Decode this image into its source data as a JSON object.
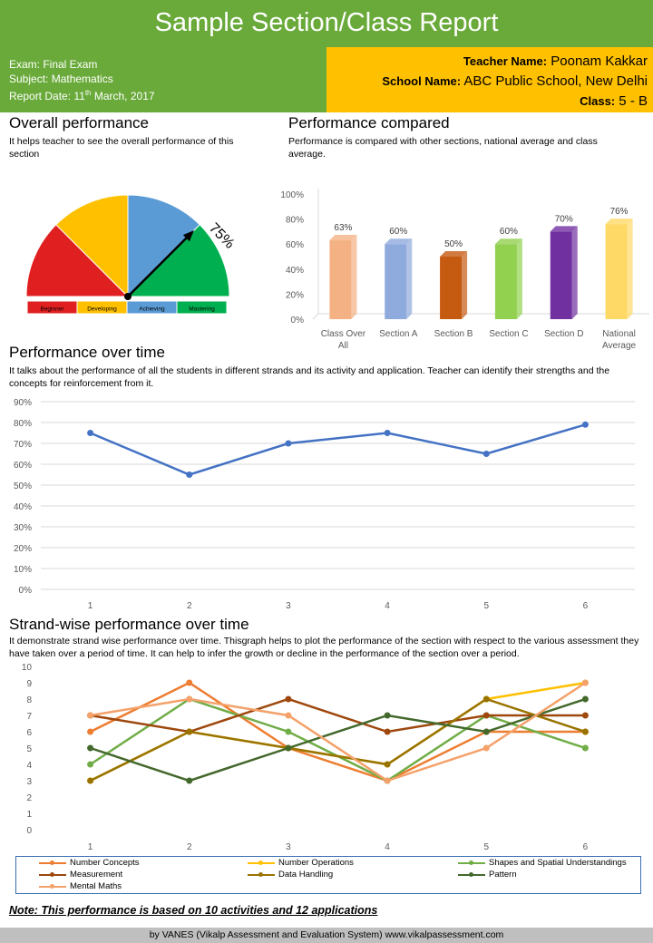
{
  "title": "Sample Section/Class Report",
  "exam": {
    "exam": "Exam: Final Exam",
    "subject": "Subject: Mathematics",
    "report_date_prefix": "Report Date: 11",
    "report_date_sup": "th",
    "report_date_suffix": " March, 2017"
  },
  "teacher": {
    "label": "Teacher Name:",
    "value": " Poonam Kakkar"
  },
  "school": {
    "label": "School Name:",
    "value": " ABC Public School, New Delhi"
  },
  "class_info": {
    "label": "Class:",
    "value": "  5 - B"
  },
  "overall": {
    "title": "Overall performance",
    "desc": "It helps teacher to see  the overall performance of this section",
    "gauge_value": 75,
    "gauge_label": "75%",
    "bands": [
      {
        "label": "Beginner",
        "color": "#e02020"
      },
      {
        "label": "Developing",
        "color": "#ffc000"
      },
      {
        "label": "Achieving",
        "color": "#5b9bd5"
      },
      {
        "label": "Mastering",
        "color": "#00b050"
      }
    ]
  },
  "compared": {
    "title": "Performance compared",
    "desc": "Performance is compared with other sections, national average and class average."
  },
  "over_time": {
    "title": "Performance over time",
    "desc": "It talks about the performance of all the students in different strands and its activity and application. Teacher can identify their strengths and the concepts for reinforcement from it."
  },
  "strand": {
    "title": "Strand-wise performance over time",
    "desc": "It demonstrate strand wise performance over time. Thisgraph helps to plot the performance of the section with respect to the various assessment they have taken over a period of time. It can help to infer the growth or decline in the performance of the section over a period."
  },
  "note": "Note: This performance is based on 10 activities and 12 applications",
  "footer": "by VANES (Vikalp Assessment and Evaluation System) www.vikalpassessment.com",
  "chart_data": [
    {
      "type": "bar",
      "categories": [
        "Class Over All",
        "Section A",
        "Section B",
        "Section C",
        "Section D",
        "National Average"
      ],
      "values": [
        63,
        60,
        50,
        60,
        70,
        76
      ],
      "data_labels": [
        "63%",
        "60%",
        "50%",
        "60%",
        "70%",
        "76%"
      ],
      "colors": [
        "#f4b183",
        "#8faadc",
        "#c55a11",
        "#92d050",
        "#7030a0",
        "#ffd966"
      ],
      "ylim": [
        0,
        100
      ],
      "yticks": [
        "0%",
        "20%",
        "40%",
        "60%",
        "80%",
        "100%"
      ]
    },
    {
      "type": "line",
      "x": [
        "1",
        "2",
        "3",
        "4",
        "5",
        "6"
      ],
      "series": [
        {
          "values": [
            75,
            55,
            70,
            75,
            65,
            79
          ],
          "color": "#4472c4"
        }
      ],
      "ylim": [
        0,
        90
      ],
      "yticks": [
        "0%",
        "10%",
        "20%",
        "30%",
        "40%",
        "50%",
        "60%",
        "70%",
        "80%",
        "90%"
      ]
    },
    {
      "type": "line",
      "x": [
        "1",
        "2",
        "3",
        "4",
        "5",
        "6"
      ],
      "ylim": [
        0,
        10
      ],
      "yticks": [
        "0",
        "1",
        "2",
        "3",
        "4",
        "5",
        "6",
        "7",
        "8",
        "9",
        "10"
      ],
      "legend": "bottom",
      "series": [
        {
          "name": "Number Concepts",
          "values": [
            6,
            9,
            5,
            3,
            6,
            6
          ],
          "color": "#ed7d31"
        },
        {
          "name": "Number Operations",
          "values": [
            3,
            6,
            5,
            4,
            8,
            9
          ],
          "color": "#ffc000"
        },
        {
          "name": "Shapes and Spatial Understandings",
          "values": [
            4,
            8,
            6,
            3,
            7,
            5
          ],
          "color": "#70ad47"
        },
        {
          "name": "Measurement",
          "values": [
            7,
            6,
            8,
            6,
            7,
            7
          ],
          "color": "#9e480e"
        },
        {
          "name": "Data Handling",
          "values": [
            3,
            6,
            5,
            4,
            8,
            6
          ],
          "color": "#997300"
        },
        {
          "name": "Pattern",
          "values": [
            5,
            3,
            5,
            7,
            6,
            8
          ],
          "color": "#43682b"
        },
        {
          "name": "Mental Maths",
          "values": [
            7,
            8,
            7,
            3,
            5,
            9
          ],
          "color": "#f4a16a"
        }
      ]
    }
  ]
}
